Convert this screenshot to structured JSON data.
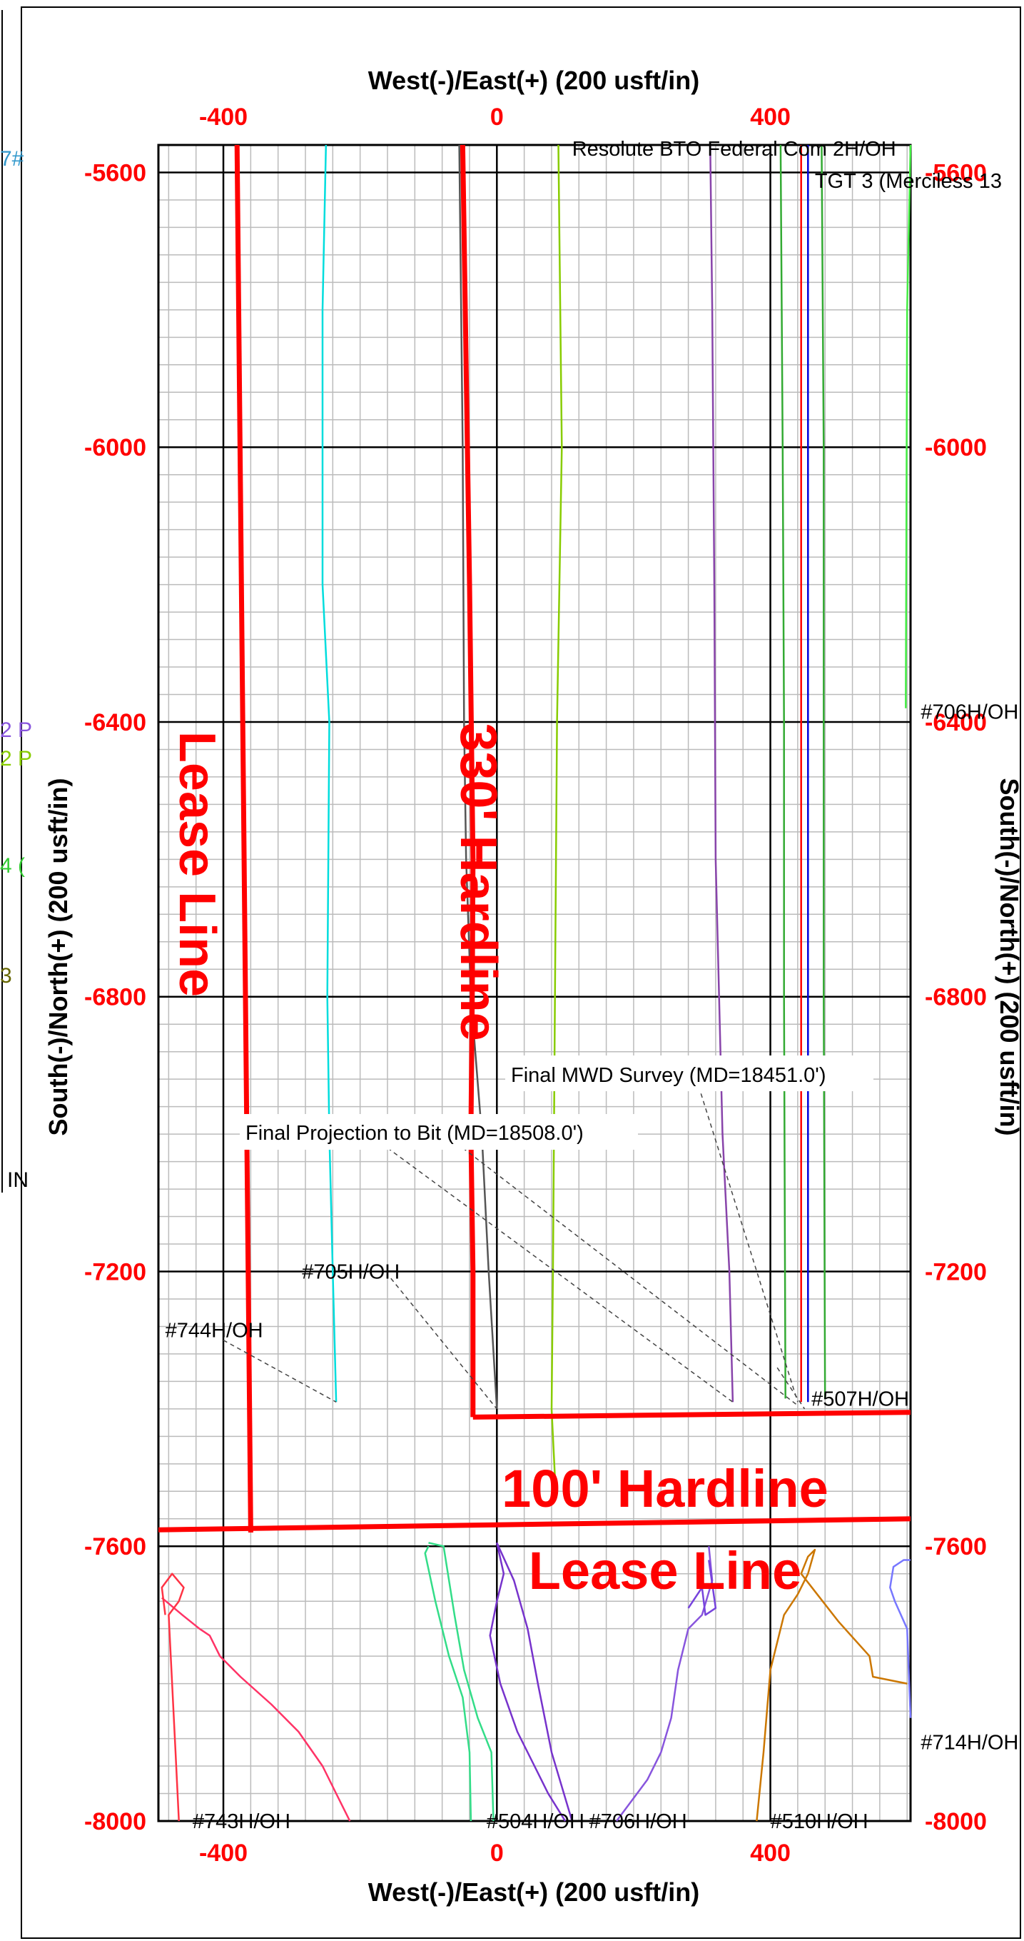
{
  "chart_data": {
    "type": "line",
    "title": "",
    "xlabel_top": "West(-)/East(+) (200 usft/in)",
    "xlabel_bottom": "West(-)/East(+) (200 usft/in)",
    "ylabel_left": "South(-)/North(+) (200 usft/in)",
    "ylabel_right": "South(-)/North(+) (200 usft/in)",
    "xlim": [
      -495,
      605
    ],
    "ylim": [
      -8000,
      -5560
    ],
    "x_ticks": [
      -400,
      0,
      400
    ],
    "x_tick_labels": [
      "-400",
      "0",
      "400"
    ],
    "y_ticks": [
      -5600,
      -6000,
      -6400,
      -6800,
      -7200,
      -7600,
      -8000
    ],
    "y_tick_labels": [
      "-5600",
      "-6000",
      "-6400",
      "-6800",
      "-7200",
      "-7600",
      "-8000"
    ],
    "grid": true,
    "minor_grid_step": 40,
    "boundaries": [
      {
        "name": "lease-line-west",
        "color": "#ff0000",
        "x": [
          -380,
          -360
        ],
        "y": [
          -5560,
          -7580
        ]
      },
      {
        "name": "lease-line-south",
        "color": "#ff0000",
        "x": [
          -495,
          605
        ],
        "y": [
          -7576,
          -7560
        ]
      },
      {
        "name": "hardline-330",
        "color": "#ff0000",
        "x": [
          -50,
          -40,
          -35,
          -36,
          -38,
          -35,
          -35
        ],
        "y": [
          -5560,
          -6200,
          -6600,
          -6800,
          -7000,
          -7200,
          -7412
        ]
      },
      {
        "name": "hardline-100",
        "color": "#ff0000",
        "x": [
          -35,
          605
        ],
        "y": [
          -7412,
          -7405
        ]
      }
    ],
    "series": [
      {
        "name": "",
        "color": "#00dddd",
        "x": [
          -250,
          -255,
          -255,
          -245,
          -248,
          -245,
          -240,
          -235
        ],
        "y": [
          -5560,
          -5800,
          -6200,
          -6400,
          -6800,
          -7000,
          -7200,
          -7390
        ]
      },
      {
        "name": "",
        "color": "#555555",
        "x": [
          -55,
          -50,
          -48,
          -45,
          -38,
          -22,
          -12,
          0
        ],
        "y": [
          -5560,
          -6000,
          -6400,
          -6600,
          -6800,
          -7000,
          -7200,
          -7400
        ]
      },
      {
        "name": "Resolute BTO Federal Com 2H/OH",
        "color": "#88cc00",
        "x": [
          90,
          95,
          88,
          85,
          82,
          80,
          85
        ],
        "y": [
          -5560,
          -6000,
          -6400,
          -6800,
          -7200,
          -7400,
          -7500
        ]
      },
      {
        "name": "",
        "color": "#8844aa",
        "x": [
          312,
          315,
          318,
          320,
          325,
          330,
          340,
          345
        ],
        "y": [
          -5560,
          -5800,
          -6200,
          -6600,
          -6800,
          -7000,
          -7200,
          -7390
        ]
      },
      {
        "name": "",
        "color": "#33aa33",
        "x": [
          415,
          418,
          420,
          420,
          422
        ],
        "y": [
          -5560,
          -6000,
          -6400,
          -6800,
          -7385
        ]
      },
      {
        "name": "",
        "color": "#33aa33",
        "x": [
          475,
          478,
          478,
          480
        ],
        "y": [
          -5560,
          -6000,
          -6800,
          -7385
        ]
      },
      {
        "name": "",
        "color": "#0000dd",
        "x": [
          455,
          455,
          455,
          455
        ],
        "y": [
          -5560,
          -6400,
          -7000,
          -7390
        ]
      },
      {
        "name": "",
        "color": "#ff0000",
        "x": [
          445,
          445,
          445
        ],
        "y": [
          -5560,
          -7000,
          -7390
        ]
      },
      {
        "name": "",
        "color": "#ff3366",
        "x": [
          -490,
          -460,
          -435,
          -420,
          -405,
          -375,
          -330,
          -290,
          -255,
          -235,
          -215
        ],
        "y": [
          -7675,
          -7700,
          -7720,
          -7730,
          -7760,
          -7790,
          -7830,
          -7870,
          -7920,
          -7960,
          -8000
        ]
      },
      {
        "name": "",
        "color": "#ff3344",
        "x": [
          -485,
          -490,
          -475,
          -458,
          -465,
          -480,
          -470,
          -465
        ],
        "y": [
          -7700,
          -7660,
          -7640,
          -7660,
          -7680,
          -7700,
          -7900,
          -8000
        ]
      },
      {
        "name": "",
        "color": "#33dd88",
        "x": [
          -100,
          -105,
          -90,
          -70,
          -50,
          -40,
          -38
        ],
        "y": [
          -7600,
          -7610,
          -7680,
          -7760,
          -7820,
          -7900,
          -8000
        ]
      },
      {
        "name": "",
        "color": "#33dd88",
        "x": [
          -100,
          -78,
          -62,
          -48,
          -28,
          -8,
          -5
        ],
        "y": [
          -7595,
          -7600,
          -7700,
          -7780,
          -7850,
          -7900,
          -8000
        ]
      },
      {
        "name": "",
        "color": "#7733cc",
        "x": [
          0,
          10,
          0,
          -10,
          5,
          30,
          55,
          75,
          100
        ],
        "y": [
          -7595,
          -7640,
          -7680,
          -7730,
          -7800,
          -7870,
          -7920,
          -7960,
          -8000
        ]
      },
      {
        "name": "",
        "color": "#7733cc",
        "x": [
          0,
          25,
          45,
          60,
          80,
          110
        ],
        "y": [
          -7595,
          -7650,
          -7720,
          -7800,
          -7900,
          -8000
        ]
      },
      {
        "name": "",
        "color": "#8855dd",
        "x": [
          175,
          220,
          240,
          255,
          265,
          280,
          300,
          315,
          310
        ],
        "y": [
          -8000,
          -7940,
          -7900,
          -7850,
          -7780,
          -7720,
          -7700,
          -7650,
          -7600
        ]
      },
      {
        "name": "",
        "color": "#7744dd",
        "x": [
          280,
          300,
          305,
          320,
          310
        ],
        "y": [
          -7690,
          -7660,
          -7700,
          -7690,
          -7620
        ]
      },
      {
        "name": "",
        "color": "#cc7700",
        "x": [
          380,
          390,
          400,
          420,
          440,
          455,
          465,
          455,
          445,
          500,
          545,
          550,
          600
        ],
        "y": [
          -8000,
          -7900,
          -7780,
          -7700,
          -7670,
          -7640,
          -7605,
          -7615,
          -7640,
          -7710,
          -7760,
          -7790,
          -7800
        ]
      },
      {
        "name": "",
        "color": "#7777ff",
        "x": [
          605,
          595,
          580,
          575,
          582,
          600,
          605
        ],
        "y": [
          -7620,
          -7620,
          -7630,
          -7660,
          -7680,
          -7720,
          -7850
        ]
      },
      {
        "name": "",
        "color": "#44ee44",
        "x": [
          605,
          600,
          598
        ],
        "y": [
          -5560,
          -5800,
          -6380
        ]
      }
    ],
    "leaders": [
      {
        "x": [
          -155,
          0
        ],
        "y": [
          -7210,
          -7400
        ]
      },
      {
        "x": [
          -400,
          -235
        ],
        "y": [
          -7300,
          -7390
        ]
      },
      {
        "x": [
          -160,
          345
        ],
        "y": [
          -7020,
          -7390
        ]
      },
      {
        "x": [
          -50,
          440
        ],
        "y": [
          -7020,
          -7395
        ]
      },
      {
        "x": [
          295,
          440
        ],
        "y": [
          -6930,
          -7390
        ]
      },
      {
        "x": [
          410,
          450
        ],
        "y": [
          -7340,
          -7400
        ]
      }
    ],
    "labels": {
      "resolute": {
        "text": "Resolute BTO Federal Com 2H/OH",
        "color": "#88cc00",
        "x": 110,
        "y": -5565
      },
      "tgt3": {
        "text": "TGT 3 (Merciless 13",
        "color": "#000000",
        "x": 465,
        "y": -5612
      },
      "w706_right": {
        "text": "#706H/OH",
        "color": "#44ee44",
        "x": 620,
        "y": -6385
      },
      "final_mwd": {
        "text": "Final MWD Survey (MD=18451.0')",
        "color": "#000000",
        "x": 18,
        "y": -6925
      },
      "final_proj": {
        "text": "Final Projection to Bit  (MD=18508.0')",
        "color": "#000000",
        "x": -370,
        "y": -7010
      },
      "w705": {
        "text": "#705H/OH",
        "color": "#555555",
        "x": -285,
        "y": -7200
      },
      "w744": {
        "text": "#744H/OH",
        "color": "#00dddd",
        "x": -485,
        "y": -7285
      },
      "w507": {
        "text": "#507H/OH",
        "color": "#ff0000",
        "x": 460,
        "y": -7385
      },
      "w714": {
        "text": "#714H/OH",
        "color": "#7777ff",
        "x": 620,
        "y": -7885
      },
      "w743": {
        "text": "#743H/OH",
        "color": "#ff3344",
        "x": -445,
        "y": -8000
      },
      "w504": {
        "text": "#504H/OH",
        "color": "#33dd88",
        "x": -15,
        "y": -8000
      },
      "w706_bottom": {
        "text": "#706H/OH",
        "color": "#7733cc",
        "x": 135,
        "y": -8000
      },
      "w510": {
        "text": "#510H/OH",
        "color": "#cc7700",
        "x": 400,
        "y": -8000
      }
    },
    "annotations": {
      "lease_line_vertical": "Lease Line",
      "hardline_330": "330' Hardline",
      "hardline_100": "100' Hardline",
      "lease_line_horizontal": "Lease Line"
    }
  },
  "side_fragments": [
    "7#",
    "2 P",
    "2 P",
    "4 (",
    "3",
    "IN"
  ]
}
